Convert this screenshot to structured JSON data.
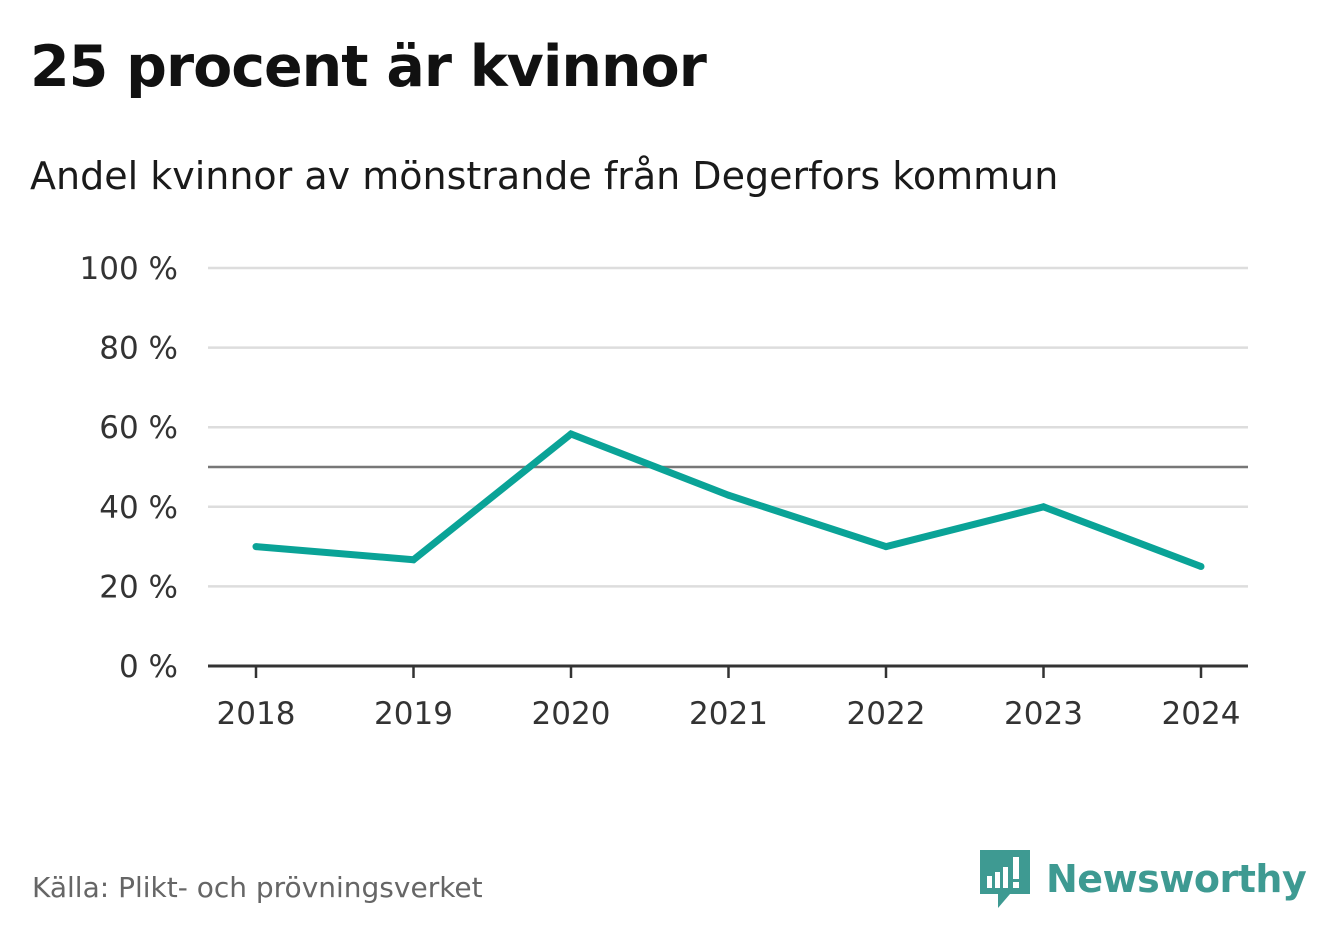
{
  "title": "25 procent är kvinnor",
  "subtitle": "Andel kvinnor av mönstrande från Degerfors kommun",
  "source": "Källa: Plikt- och prövningsverket",
  "brand": {
    "name": "Newsworthy",
    "icon": "newsworthy-logo-icon",
    "color": "#3e9a92"
  },
  "colors": {
    "line": "#0aa397",
    "grid": "#dddddd",
    "reference": "#777777",
    "axis": "#333333"
  },
  "chart_data": {
    "type": "line",
    "categories": [
      "2018",
      "2019",
      "2020",
      "2021",
      "2022",
      "2023",
      "2024"
    ],
    "values": [
      30,
      26.7,
      58.3,
      42.9,
      30,
      40,
      25
    ],
    "yticks": [
      0,
      20,
      40,
      60,
      80,
      100
    ],
    "ytick_labels": [
      "0 %",
      "20 %",
      "40 %",
      "60 %",
      "80 %",
      "100 %"
    ],
    "ylim": [
      0,
      100
    ],
    "reference_line": 50,
    "grid": true,
    "xlabel": "",
    "ylabel": ""
  }
}
